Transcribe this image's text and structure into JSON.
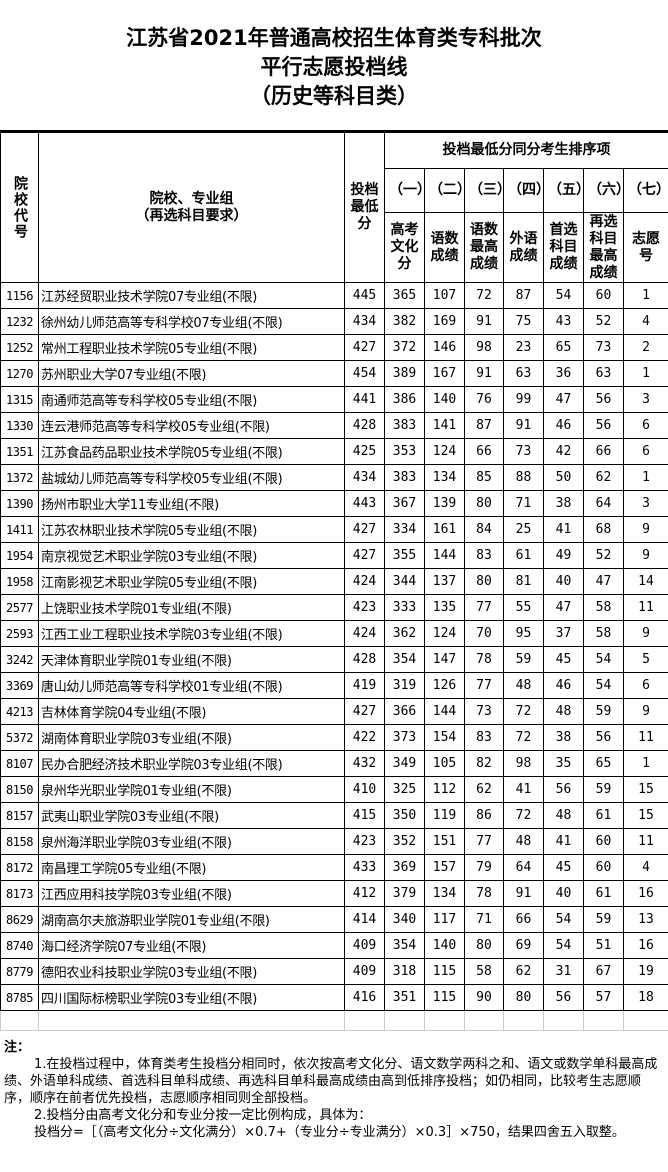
{
  "title": [
    "江苏省2021年普通高校招生体育类专科批次",
    "平行志愿投档线",
    "（历史等科目类）"
  ],
  "header": {
    "code": "院校代号",
    "name": "院校、专业组\n（再选科目要求）",
    "score": "投档最低分",
    "group": "投档最低分同分考生排序项",
    "nums": [
      "（一）",
      "（二）",
      "（三）",
      "（四）",
      "（五）",
      "（六）",
      "（七）"
    ],
    "subs": [
      "高考文化分",
      "语数成绩",
      "语数最高成绩",
      "外语成绩",
      "首选科目成绩",
      "再选科目最高成绩",
      "志愿号"
    ]
  },
  "rows": [
    [
      "1156",
      "江苏经贸职业技术学院07专业组(不限)",
      "445",
      "365",
      "107",
      "72",
      "87",
      "54",
      "60",
      "1"
    ],
    [
      "1232",
      "徐州幼儿师范高等专科学校07专业组(不限)",
      "434",
      "382",
      "169",
      "91",
      "75",
      "43",
      "52",
      "4"
    ],
    [
      "1252",
      "常州工程职业技术学院05专业组(不限)",
      "427",
      "372",
      "146",
      "98",
      "23",
      "65",
      "73",
      "2"
    ],
    [
      "1270",
      "苏州职业大学07专业组(不限)",
      "454",
      "389",
      "167",
      "91",
      "63",
      "36",
      "63",
      "1"
    ],
    [
      "1315",
      "南通师范高等专科学校05专业组(不限)",
      "441",
      "386",
      "140",
      "76",
      "99",
      "47",
      "56",
      "3"
    ],
    [
      "1330",
      "连云港师范高等专科学校05专业组(不限)",
      "428",
      "383",
      "141",
      "87",
      "91",
      "46",
      "56",
      "6"
    ],
    [
      "1351",
      "江苏食品药品职业技术学院05专业组(不限)",
      "425",
      "353",
      "124",
      "66",
      "73",
      "42",
      "66",
      "6"
    ],
    [
      "1372",
      "盐城幼儿师范高等专科学校05专业组(不限)",
      "434",
      "383",
      "134",
      "85",
      "88",
      "50",
      "62",
      "1"
    ],
    [
      "1390",
      "扬州市职业大学11专业组(不限)",
      "443",
      "367",
      "139",
      "80",
      "71",
      "38",
      "64",
      "3"
    ],
    [
      "1411",
      "江苏农林职业技术学院05专业组(不限)",
      "427",
      "334",
      "161",
      "84",
      "25",
      "41",
      "68",
      "9"
    ],
    [
      "1954",
      "南京视觉艺术职业学院03专业组(不限)",
      "427",
      "355",
      "144",
      "83",
      "61",
      "49",
      "52",
      "9"
    ],
    [
      "1958",
      "江南影视艺术职业学院05专业组(不限)",
      "424",
      "344",
      "137",
      "80",
      "81",
      "40",
      "47",
      "14"
    ],
    [
      "2577",
      "上饶职业技术学院01专业组(不限)",
      "423",
      "333",
      "135",
      "77",
      "55",
      "47",
      "58",
      "11"
    ],
    [
      "2593",
      "江西工业工程职业技术学院03专业组(不限)",
      "424",
      "362",
      "124",
      "70",
      "95",
      "37",
      "58",
      "9"
    ],
    [
      "3242",
      "天津体育职业学院01专业组(不限)",
      "428",
      "354",
      "147",
      "78",
      "59",
      "45",
      "54",
      "5"
    ],
    [
      "3369",
      "唐山幼儿师范高等专科学校01专业组(不限)",
      "419",
      "319",
      "126",
      "77",
      "48",
      "46",
      "54",
      "6"
    ],
    [
      "4213",
      "吉林体育学院04专业组(不限)",
      "427",
      "366",
      "144",
      "73",
      "72",
      "48",
      "59",
      "9"
    ],
    [
      "5372",
      "湖南体育职业学院03专业组(不限)",
      "422",
      "373",
      "154",
      "83",
      "72",
      "38",
      "56",
      "11"
    ],
    [
      "8107",
      "民办合肥经济技术职业学院03专业组(不限)",
      "432",
      "349",
      "105",
      "82",
      "98",
      "35",
      "65",
      "1"
    ],
    [
      "8150",
      "泉州华光职业学院01专业组(不限)",
      "410",
      "325",
      "112",
      "62",
      "41",
      "56",
      "59",
      "15"
    ],
    [
      "8157",
      "武夷山职业学院03专业组(不限)",
      "415",
      "350",
      "119",
      "86",
      "72",
      "48",
      "61",
      "15"
    ],
    [
      "8158",
      "泉州海洋职业学院03专业组(不限)",
      "423",
      "352",
      "151",
      "77",
      "48",
      "41",
      "60",
      "11"
    ],
    [
      "8172",
      "南昌理工学院05专业组(不限)",
      "433",
      "369",
      "157",
      "79",
      "64",
      "45",
      "60",
      "4"
    ],
    [
      "8173",
      "江西应用科技学院03专业组(不限)",
      "412",
      "379",
      "134",
      "78",
      "91",
      "40",
      "61",
      "16"
    ],
    [
      "8629",
      "湖南高尔夫旅游职业学院01专业组(不限)",
      "414",
      "340",
      "117",
      "71",
      "66",
      "54",
      "59",
      "13"
    ],
    [
      "8740",
      "海口经济学院07专业组(不限)",
      "409",
      "354",
      "140",
      "80",
      "69",
      "54",
      "51",
      "16"
    ],
    [
      "8779",
      "德阳农业科技职业学院03专业组(不限)",
      "409",
      "318",
      "115",
      "58",
      "62",
      "31",
      "67",
      "19"
    ],
    [
      "8785",
      "四川国际标榜职业学院03专业组(不限)",
      "416",
      "351",
      "115",
      "90",
      "80",
      "56",
      "57",
      "18"
    ]
  ],
  "notes": {
    "heading": "注：",
    "p1": "1.在投档过程中，体育类考生投档分相同时，依次按高考文化分、语文数学两科之和、语文或数学单科最高成绩、外语单科成绩、首选科目单科成绩、再选科目单科最高成绩由高到低排序投档；如仍相同，比较考生志愿顺序，顺序在前者优先投档，志愿顺序相同则全部投档。",
    "p2": "2.投档分由高考文化分和专业分按一定比例构成，具体为：",
    "p3": "投档分=［（高考文化分÷文化满分）×0.7+（专业分÷专业满分）×0.3］×750，结果四舍五入取整。"
  }
}
